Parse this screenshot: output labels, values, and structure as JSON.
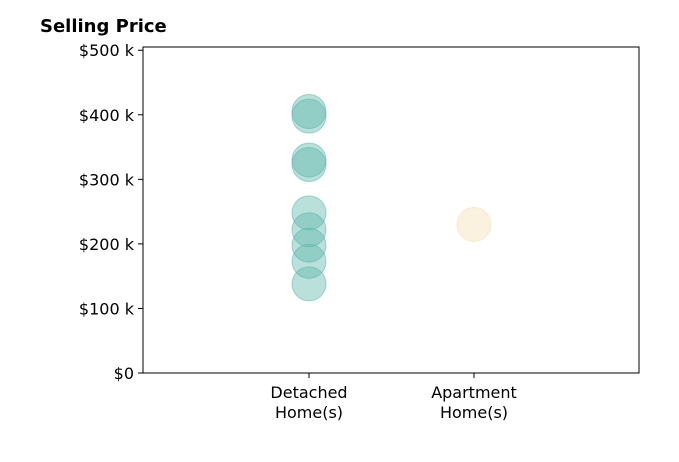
{
  "chart_data": {
    "type": "scatter",
    "title": "Selling Price",
    "xlabel": "",
    "ylabel": "",
    "categories": [
      [
        "Detached",
        "Home(s)"
      ],
      [
        "Apartment",
        "Home(s)"
      ]
    ],
    "ylim": [
      0,
      505000
    ],
    "y_ticks": [
      {
        "value": 0,
        "label": "$0"
      },
      {
        "value": 100000,
        "label": "$100 k"
      },
      {
        "value": 200000,
        "label": "$200 k"
      },
      {
        "value": 300000,
        "label": "$300 k"
      },
      {
        "value": 400000,
        "label": "$400 k"
      },
      {
        "value": 500000,
        "label": "$500 k"
      }
    ],
    "grid": false,
    "legend": "none",
    "series": [
      {
        "category": 0,
        "color": "#5bb5a9",
        "values": [
          405000,
          398000,
          330000,
          323000,
          248000,
          222000,
          198000,
          173000,
          138000
        ]
      },
      {
        "category": 1,
        "color": "#f3dfb0",
        "values": [
          230000
        ]
      }
    ]
  }
}
